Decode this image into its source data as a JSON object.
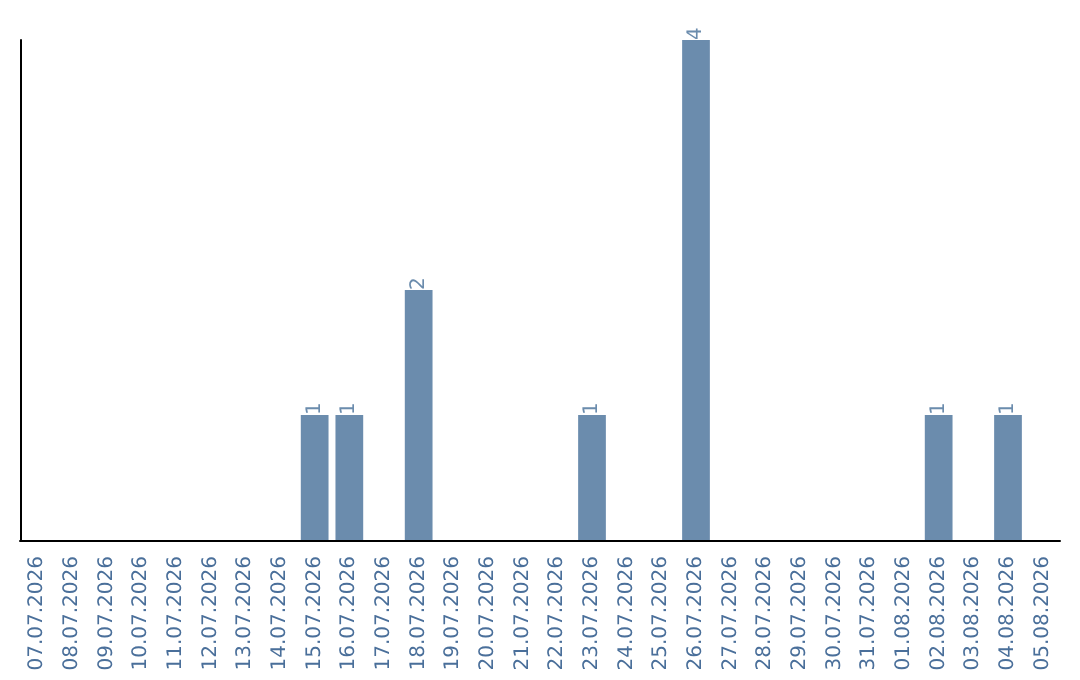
{
  "chart_data": {
    "type": "bar",
    "categories": [
      "07.07.2026",
      "08.07.2026",
      "09.07.2026",
      "10.07.2026",
      "11.07.2026",
      "12.07.2026",
      "13.07.2026",
      "14.07.2026",
      "15.07.2026",
      "16.07.2026",
      "17.07.2026",
      "18.07.2026",
      "19.07.2026",
      "20.07.2026",
      "21.07.2026",
      "22.07.2026",
      "23.07.2026",
      "24.07.2026",
      "25.07.2026",
      "26.07.2026",
      "27.07.2026",
      "28.07.2026",
      "29.07.2026",
      "30.07.2026",
      "31.07.2026",
      "01.08.2026",
      "02.08.2026",
      "03.08.2026",
      "04.08.2026",
      "05.08.2026"
    ],
    "values": [
      0,
      0,
      0,
      0,
      0,
      0,
      0,
      0,
      1,
      1,
      0,
      2,
      0,
      0,
      0,
      0,
      1,
      0,
      0,
      4,
      0,
      0,
      0,
      0,
      0,
      0,
      1,
      0,
      1,
      0
    ],
    "value_labels": [
      null,
      null,
      null,
      null,
      null,
      null,
      null,
      null,
      "1",
      "1",
      null,
      "2",
      null,
      null,
      null,
      null,
      "1",
      null,
      null,
      "4",
      null,
      null,
      null,
      null,
      null,
      null,
      "1",
      null,
      "1",
      null
    ],
    "color": "#6b8cad",
    "ylim": [
      0,
      4
    ],
    "tick_labels": "x",
    "grid": false
  }
}
